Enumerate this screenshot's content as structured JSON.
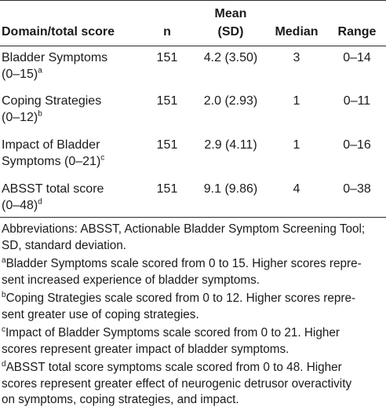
{
  "header": {
    "domain": "Domain/total score",
    "n": "n",
    "mean_line1": "Mean",
    "mean_line2": "(SD)",
    "median": "Median",
    "range": "Range"
  },
  "rows": [
    {
      "line1": "Bladder Symptoms",
      "line2": "(0–15)",
      "sup": "a",
      "n": "151",
      "mean": "4.2 (3.50)",
      "median": "3",
      "range": "0–14"
    },
    {
      "line1": "Coping Strategies",
      "line2": "(0–12)",
      "sup": "b",
      "n": "151",
      "mean": "2.0 (2.93)",
      "median": "1",
      "range": "0–11"
    },
    {
      "line1": "Impact of Bladder",
      "line2": "Symptoms (0–21)",
      "sup": "c",
      "n": "151",
      "mean": "2.9 (4.11)",
      "median": "1",
      "range": "0–16"
    },
    {
      "line1": "ABSST total score",
      "line2": "(0–48)",
      "sup": "d",
      "n": "151",
      "mean": "9.1 (9.86)",
      "median": "4",
      "range": "0–38"
    }
  ],
  "notes": {
    "abbrev": [
      "Abbreviations: ABSST, Actionable Bladder Symptom Screening Tool;",
      "SD, standard deviation."
    ],
    "a_sup": "a",
    "a": [
      "Bladder Symptoms scale scored from 0 to 15. Higher scores repre-",
      "sent increased experience of bladder symptoms."
    ],
    "b_sup": "b",
    "b": [
      "Coping Strategies scale scored from 0 to 12. Higher scores repre-",
      "sent greater use of coping strategies."
    ],
    "c_sup": "c",
    "c": [
      "Impact of Bladder Symptoms scale scored from 0 to 21. Higher",
      "scores represent greater impact of bladder symptoms."
    ],
    "d_sup": "d",
    "d": [
      "ABSST total score symptoms scale scored from 0 to 48. Higher",
      "scores represent greater effect of neurogenic detrusor overactivity",
      "on symptoms, coping strategies, and impact."
    ]
  }
}
